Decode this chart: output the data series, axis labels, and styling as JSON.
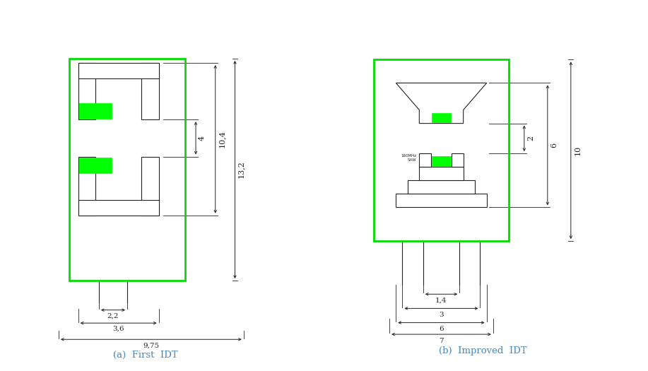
{
  "fig_width": 9.17,
  "fig_height": 5.25,
  "bg_color": "#ffffff",
  "green_border": "#00dd00",
  "green_fill": "#00ff00",
  "line_color": "#222222",
  "dim_color": "#222222",
  "title_a": "(a)  First  IDT",
  "title_b": "(b)  Improved  IDT",
  "title_color": "#4488bb"
}
